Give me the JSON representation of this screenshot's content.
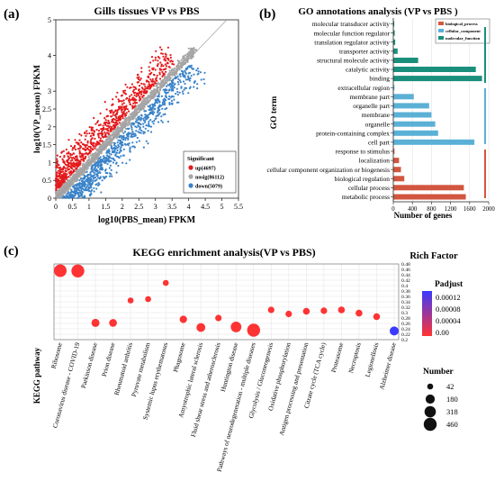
{
  "chart_data": [
    {
      "type": "scatter",
      "panel_label": "(a)",
      "title": "Gills tissues VP vs PBS",
      "xlabel": "log10(PBS_mean) FPKM",
      "ylabel": "log10(VP_mean) FPKM",
      "xlim": [
        0,
        5.5
      ],
      "ylim": [
        0,
        5
      ],
      "x_ticks": [
        "0",
        "0.5",
        "1",
        "1.5",
        "2",
        "2.5",
        "3",
        "3.5",
        "4",
        "4.5",
        "5",
        "5.5"
      ],
      "y_ticks": [
        "0",
        "0.5",
        "1",
        "1.5",
        "2",
        "2.5",
        "3",
        "4",
        "5"
      ],
      "legend_title": "Significant",
      "legend_position": "bottom-right",
      "series": [
        {
          "name": "up(4697)",
          "color": "#e41a1c",
          "count": 4697
        },
        {
          "name": "nosig(86112)",
          "color": "#a6a6a6",
          "count": 86112
        },
        {
          "name": "down(5079)",
          "color": "#3a83c9",
          "count": 5079
        }
      ]
    },
    {
      "type": "bar",
      "panel_label": "(b)",
      "title": "GO annotations analysis (VP vs PBS )",
      "xlabel": "Number of genes",
      "ylabel": "GO term",
      "xlim": [
        0,
        2000
      ],
      "x_ticks": [
        "0",
        "400",
        "800",
        "1200",
        "1600",
        "2000"
      ],
      "legend_position": "top-right",
      "legend": [
        {
          "name": "biological_process",
          "color": "#d2563f"
        },
        {
          "name": "cellular_component",
          "color": "#5bb0d6"
        },
        {
          "name": "molecular_function",
          "color": "#1a8f7c"
        }
      ],
      "categories": [
        "molecular transducer activity",
        "molecular function regulator",
        "translation regulator activity",
        "transporter activity",
        "structural molecule activity",
        "catalytic activity",
        "binding",
        "extracellular region",
        "membrane part",
        "organelle part",
        "membrane",
        "organelle",
        "protein-containing complex",
        "cell part",
        "response to stimulus",
        "localization",
        "cellular component organization or biogenesis",
        "biological regulation",
        "cellular process",
        "metabolic process"
      ],
      "values": [
        20,
        30,
        40,
        90,
        520,
        1730,
        1860,
        25,
        430,
        750,
        800,
        880,
        940,
        1700,
        25,
        120,
        160,
        230,
        1480,
        1520
      ],
      "groups": [
        "molecular_function",
        "molecular_function",
        "molecular_function",
        "molecular_function",
        "molecular_function",
        "molecular_function",
        "molecular_function",
        "cellular_component",
        "cellular_component",
        "cellular_component",
        "cellular_component",
        "cellular_component",
        "cellular_component",
        "cellular_component",
        "biological_process",
        "biological_process",
        "biological_process",
        "biological_process",
        "biological_process",
        "biological_process"
      ]
    },
    {
      "type": "scatter",
      "panel_label": "(c)",
      "title": "KEGG enrichment analysis(VP vs PBS)",
      "xlabel": "KEGG pathway",
      "ylabel": "Rich Factor",
      "ylim": [
        0.2,
        0.48
      ],
      "y_ticks": [
        "0.48",
        "0.46",
        "0.44",
        "0.42",
        "0.4",
        "0.38",
        "0.36",
        "0.34",
        "0.32",
        "0.3",
        "0.28",
        "0.26",
        "0.24",
        "0.22",
        "0.2"
      ],
      "categories": [
        "Ribosome",
        "Coronavirus disease - COVID-19",
        "Parkinson disease",
        "Prion disease",
        "Rheumatoid arthritis",
        "Pyruvate metabolism",
        "Systemic lupus erythematosus",
        "Phagosome",
        "Amyotrophic lateral sclerosis",
        "Fluid shear stress and atherosclerosis",
        "Huntington disease",
        "Pathways of neurodegeneration - multiple diseases",
        "Glycolysis / Gluconeogenesis",
        "Oxidative phosphorylation",
        "Antigen processing and presentation",
        "Citrate cycle (TCA cycle)",
        "Proteasome",
        "Necroptosis",
        "Legionellosis",
        "Alzheimer disease"
      ],
      "rich_factor": [
        0.455,
        0.454,
        0.262,
        0.262,
        0.345,
        0.35,
        0.41,
        0.275,
        0.245,
        0.28,
        0.247,
        0.235,
        0.31,
        0.295,
        0.305,
        0.307,
        0.31,
        0.298,
        0.285,
        0.232
      ],
      "number": [
        430,
        460,
        120,
        110,
        42,
        42,
        42,
        90,
        160,
        60,
        270,
        460,
        60,
        60,
        70,
        60,
        70,
        70,
        70,
        170
      ],
      "padjust": [
        1e-06,
        1e-06,
        1e-06,
        1e-06,
        1e-06,
        1e-06,
        1e-06,
        1e-06,
        1e-06,
        1e-06,
        1e-06,
        1e-06,
        1e-06,
        1e-06,
        1e-06,
        1e-06,
        1e-06,
        1e-06,
        1e-06,
        0.00014
      ],
      "padjust_legend": {
        "title": "Padjust",
        "ticks": [
          "0.00012",
          "0.00008",
          "0.00004",
          "0.00"
        ],
        "color_low": "#ff3333",
        "color_high": "#3a3aff"
      },
      "number_legend": {
        "title": "Number",
        "values": [
          "42",
          "180",
          "318",
          "460"
        ]
      }
    }
  ]
}
